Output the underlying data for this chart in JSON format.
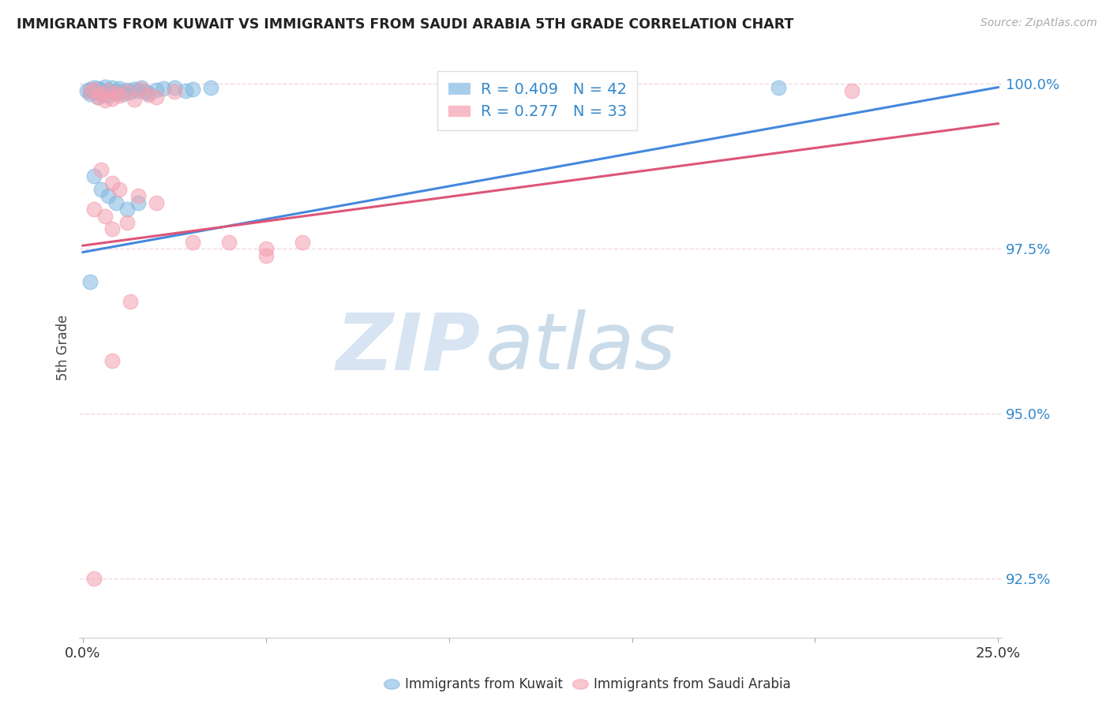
{
  "title": "IMMIGRANTS FROM KUWAIT VS IMMIGRANTS FROM SAUDI ARABIA 5TH GRADE CORRELATION CHART",
  "source": "Source: ZipAtlas.com",
  "ylabel": "5th Grade",
  "xlim": [
    0.0,
    0.25
  ],
  "ylim": [
    0.916,
    1.004
  ],
  "yticks": [
    0.925,
    0.95,
    0.975,
    1.0
  ],
  "ytick_labels": [
    "92.5%",
    "95.0%",
    "97.5%",
    "100.0%"
  ],
  "xticks": [
    0.0,
    0.05,
    0.1,
    0.15,
    0.2,
    0.25
  ],
  "xtick_labels": [
    "0.0%",
    "",
    "",
    "",
    "",
    "25.0%"
  ],
  "kuwait_color": "#80b8e0",
  "saudi_color": "#f4a0b0",
  "kuwait_R": 0.409,
  "kuwait_N": 42,
  "saudi_R": 0.277,
  "saudi_N": 33,
  "kuwait_scatter_x": [
    0.001,
    0.002,
    0.002,
    0.003,
    0.003,
    0.004,
    0.004,
    0.005,
    0.005,
    0.006,
    0.006,
    0.007,
    0.007,
    0.008,
    0.008,
    0.009,
    0.01,
    0.01,
    0.011,
    0.012,
    0.013,
    0.014,
    0.015,
    0.016,
    0.017,
    0.018,
    0.02,
    0.022,
    0.025,
    0.028,
    0.03,
    0.035,
    0.003,
    0.005,
    0.007,
    0.009,
    0.012,
    0.015,
    0.002,
    0.12,
    0.145,
    0.19
  ],
  "kuwait_scatter_y": [
    0.999,
    0.9985,
    0.9992,
    0.9988,
    0.9995,
    0.998,
    0.9993,
    0.9987,
    0.9991,
    0.9984,
    0.9996,
    0.9982,
    0.999,
    0.9988,
    0.9994,
    0.9986,
    0.9989,
    0.9993,
    0.9985,
    0.9991,
    0.9987,
    0.9992,
    0.999,
    0.9995,
    0.9988,
    0.9986,
    0.9991,
    0.9993,
    0.9995,
    0.999,
    0.9992,
    0.9994,
    0.986,
    0.984,
    0.983,
    0.982,
    0.981,
    0.982,
    0.97,
    0.999,
    0.9992,
    0.9995
  ],
  "saudi_scatter_x": [
    0.002,
    0.003,
    0.004,
    0.005,
    0.006,
    0.007,
    0.008,
    0.009,
    0.01,
    0.012,
    0.014,
    0.016,
    0.018,
    0.02,
    0.025,
    0.005,
    0.008,
    0.01,
    0.015,
    0.02,
    0.003,
    0.006,
    0.008,
    0.012,
    0.04,
    0.05,
    0.06,
    0.013,
    0.03,
    0.008,
    0.21,
    0.003,
    0.05
  ],
  "saudi_scatter_y": [
    0.9988,
    0.9992,
    0.998,
    0.9985,
    0.9975,
    0.999,
    0.9978,
    0.9986,
    0.9982,
    0.9988,
    0.9976,
    0.9992,
    0.9984,
    0.998,
    0.9988,
    0.987,
    0.985,
    0.984,
    0.983,
    0.982,
    0.981,
    0.98,
    0.978,
    0.979,
    0.976,
    0.975,
    0.976,
    0.967,
    0.976,
    0.958,
    0.999,
    0.925,
    0.974
  ],
  "background_color": "#ffffff",
  "grid_color": "#f0d8e0",
  "watermark_zip": "ZIP",
  "watermark_atlas": "atlas",
  "legend_R_color": "#3388cc",
  "line_kuwait_color": "#4488dd",
  "line_saudi_color": "#dd5577"
}
